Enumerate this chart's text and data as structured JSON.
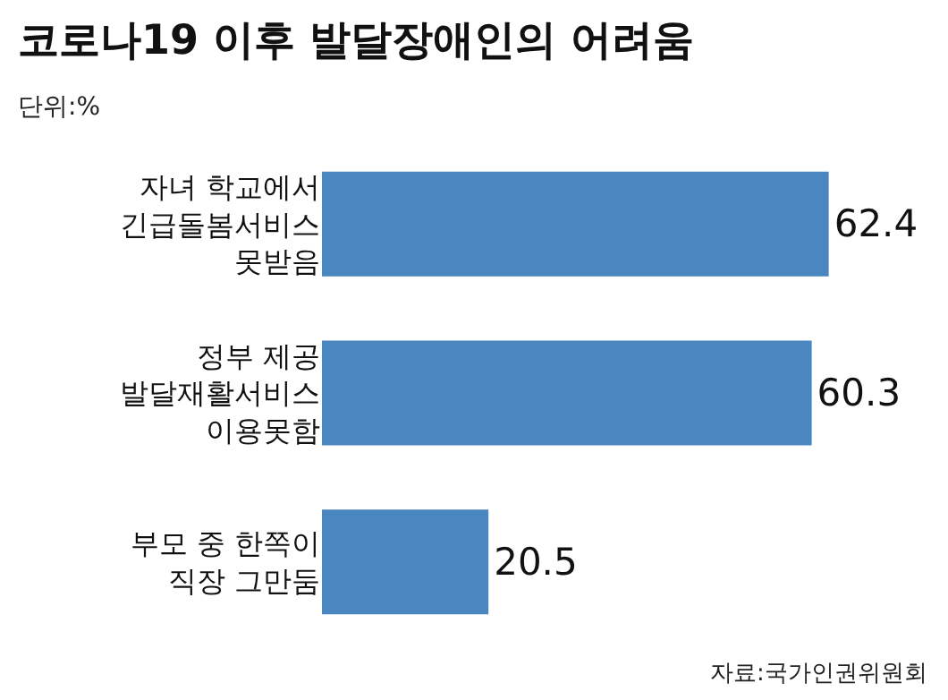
{
  "chart_data": {
    "type": "bar",
    "orientation": "horizontal",
    "title": "코로나19 이후 발달장애인의 어려움",
    "subtitle": "단위:%",
    "categories": [
      "자녀 학교에서\n긴급돌봄서비스\n못받음",
      "정부 제공\n발달재활서비스\n이용못함",
      "부모 중 한쪽이\n직장 그만둠"
    ],
    "values": [
      62.4,
      60.3,
      20.5
    ],
    "color": "#4a86c0",
    "data_labels": true,
    "annotations": [
      "자료:국가인권위원회"
    ]
  }
}
